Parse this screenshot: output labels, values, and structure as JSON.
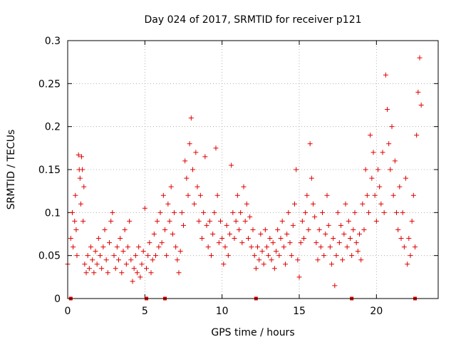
{
  "chart_data": {
    "type": "scatter",
    "title": "Day 024 of 2017, SRMTID for receiver p121",
    "xlabel": "GPS time / hours",
    "ylabel": "SRMTID / TECUs",
    "xlim": [
      0,
      24
    ],
    "ylim": [
      0,
      0.3
    ],
    "x_ticks": [
      0,
      5,
      10,
      15,
      20
    ],
    "x_tick_labels": [
      "0",
      "5",
      "10",
      "15",
      "20"
    ],
    "y_ticks": [
      0,
      0.05,
      0.1,
      0.15,
      0.2,
      0.25,
      0.3
    ],
    "y_tick_labels": [
      "0",
      "0.05",
      "0.1",
      "0.15",
      "0.2",
      "0.25",
      "0.3"
    ],
    "grid": true,
    "marker": "+",
    "color": "#e00000",
    "series": [
      {
        "name": "SRMTID",
        "points": [
          [
            0.0,
            0.04
          ],
          [
            0.2,
            0.07
          ],
          [
            0.3,
            0.1
          ],
          [
            0.35,
            0.06
          ],
          [
            0.45,
            0.09
          ],
          [
            0.5,
            0.12
          ],
          [
            0.55,
            0.08
          ],
          [
            0.6,
            0.05
          ],
          [
            0.7,
            0.167
          ],
          [
            0.75,
            0.15
          ],
          [
            0.8,
            0.14
          ],
          [
            0.85,
            0.11
          ],
          [
            0.9,
            0.165
          ],
          [
            0.95,
            0.15
          ],
          [
            1.0,
            0.09
          ],
          [
            1.05,
            0.13
          ],
          [
            1.1,
            0.04
          ],
          [
            1.2,
            0.03
          ],
          [
            1.3,
            0.05
          ],
          [
            1.4,
            0.035
          ],
          [
            1.5,
            0.06
          ],
          [
            1.6,
            0.045
          ],
          [
            1.7,
            0.03
          ],
          [
            1.8,
            0.055
          ],
          [
            1.9,
            0.04
          ],
          [
            2.0,
            0.07
          ],
          [
            2.1,
            0.05
          ],
          [
            2.2,
            0.035
          ],
          [
            2.3,
            0.06
          ],
          [
            2.4,
            0.08
          ],
          [
            2.5,
            0.045
          ],
          [
            2.6,
            0.03
          ],
          [
            2.7,
            0.065
          ],
          [
            2.8,
            0.09
          ],
          [
            2.9,
            0.1
          ],
          [
            3.0,
            0.05
          ],
          [
            3.1,
            0.035
          ],
          [
            3.2,
            0.06
          ],
          [
            3.3,
            0.045
          ],
          [
            3.4,
            0.07
          ],
          [
            3.5,
            0.03
          ],
          [
            3.6,
            0.055
          ],
          [
            3.7,
            0.08
          ],
          [
            3.8,
            0.04
          ],
          [
            3.9,
            0.06
          ],
          [
            4.0,
            0.09
          ],
          [
            4.1,
            0.045
          ],
          [
            4.2,
            0.02
          ],
          [
            4.3,
            0.035
          ],
          [
            4.4,
            0.05
          ],
          [
            4.5,
            0.03
          ],
          [
            4.6,
            0.06
          ],
          [
            4.7,
            0.025
          ],
          [
            4.8,
            0.04
          ],
          [
            4.9,
            0.055
          ],
          [
            5.0,
            0.105
          ],
          [
            5.1,
            0.035
          ],
          [
            5.2,
            0.05
          ],
          [
            5.3,
            0.065
          ],
          [
            5.4,
            0.03
          ],
          [
            5.5,
            0.045
          ],
          [
            5.6,
            0.075
          ],
          [
            5.7,
            0.05
          ],
          [
            5.8,
            0.09
          ],
          [
            5.9,
            0.06
          ],
          [
            6.0,
            0.1
          ],
          [
            6.1,
            0.065
          ],
          [
            6.2,
            0.12
          ],
          [
            6.3,
            0.08
          ],
          [
            6.4,
            0.05
          ],
          [
            6.5,
            0.11
          ],
          [
            6.6,
            0.09
          ],
          [
            6.7,
            0.13
          ],
          [
            6.8,
            0.075
          ],
          [
            6.9,
            0.1
          ],
          [
            7.0,
            0.06
          ],
          [
            7.1,
            0.045
          ],
          [
            7.2,
            0.03
          ],
          [
            7.3,
            0.055
          ],
          [
            7.4,
            0.1
          ],
          [
            7.5,
            0.085
          ],
          [
            7.6,
            0.16
          ],
          [
            7.7,
            0.14
          ],
          [
            7.8,
            0.12
          ],
          [
            7.9,
            0.18
          ],
          [
            8.0,
            0.21
          ],
          [
            8.1,
            0.15
          ],
          [
            8.2,
            0.11
          ],
          [
            8.3,
            0.17
          ],
          [
            8.4,
            0.13
          ],
          [
            8.5,
            0.09
          ],
          [
            8.6,
            0.12
          ],
          [
            8.7,
            0.07
          ],
          [
            8.8,
            0.1
          ],
          [
            8.9,
            0.165
          ],
          [
            9.0,
            0.085
          ],
          [
            9.1,
            0.06
          ],
          [
            9.2,
            0.09
          ],
          [
            9.3,
            0.05
          ],
          [
            9.4,
            0.075
          ],
          [
            9.5,
            0.1
          ],
          [
            9.6,
            0.175
          ],
          [
            9.7,
            0.12
          ],
          [
            9.8,
            0.065
          ],
          [
            9.9,
            0.09
          ],
          [
            10.0,
            0.07
          ],
          [
            10.1,
            0.04
          ],
          [
            10.2,
            0.06
          ],
          [
            10.3,
            0.085
          ],
          [
            10.4,
            0.05
          ],
          [
            10.5,
            0.075
          ],
          [
            10.6,
            0.155
          ],
          [
            10.7,
            0.1
          ],
          [
            10.8,
            0.07
          ],
          [
            10.9,
            0.09
          ],
          [
            11.0,
            0.12
          ],
          [
            11.1,
            0.08
          ],
          [
            11.2,
            0.1
          ],
          [
            11.3,
            0.065
          ],
          [
            11.4,
            0.13
          ],
          [
            11.5,
            0.09
          ],
          [
            11.6,
            0.11
          ],
          [
            11.7,
            0.07
          ],
          [
            11.8,
            0.095
          ],
          [
            11.9,
            0.06
          ],
          [
            12.0,
            0.08
          ],
          [
            12.1,
            0.05
          ],
          [
            12.2,
            0.035
          ],
          [
            12.3,
            0.06
          ],
          [
            12.4,
            0.045
          ],
          [
            12.5,
            0.075
          ],
          [
            12.6,
            0.055
          ],
          [
            12.7,
            0.04
          ],
          [
            12.8,
            0.08
          ],
          [
            12.9,
            0.06
          ],
          [
            13.0,
            0.05
          ],
          [
            13.1,
            0.07
          ],
          [
            13.2,
            0.045
          ],
          [
            13.3,
            0.065
          ],
          [
            13.4,
            0.035
          ],
          [
            13.5,
            0.055
          ],
          [
            13.6,
            0.08
          ],
          [
            13.7,
            0.05
          ],
          [
            13.8,
            0.07
          ],
          [
            13.9,
            0.09
          ],
          [
            14.0,
            0.06
          ],
          [
            14.1,
            0.04
          ],
          [
            14.2,
            0.075
          ],
          [
            14.3,
            0.1
          ],
          [
            14.4,
            0.065
          ],
          [
            14.5,
            0.05
          ],
          [
            14.6,
            0.085
          ],
          [
            14.7,
            0.11
          ],
          [
            14.8,
            0.15
          ],
          [
            14.9,
            0.045
          ],
          [
            15.0,
            0.025
          ],
          [
            15.1,
            0.065
          ],
          [
            15.2,
            0.09
          ],
          [
            15.3,
            0.07
          ],
          [
            15.4,
            0.1
          ],
          [
            15.5,
            0.12
          ],
          [
            15.6,
            0.08
          ],
          [
            15.7,
            0.18
          ],
          [
            15.8,
            0.14
          ],
          [
            15.9,
            0.11
          ],
          [
            16.0,
            0.095
          ],
          [
            16.1,
            0.065
          ],
          [
            16.2,
            0.045
          ],
          [
            16.3,
            0.08
          ],
          [
            16.4,
            0.06
          ],
          [
            16.5,
            0.1
          ],
          [
            16.6,
            0.05
          ],
          [
            16.7,
            0.075
          ],
          [
            16.8,
            0.12
          ],
          [
            16.9,
            0.085
          ],
          [
            17.0,
            0.06
          ],
          [
            17.1,
            0.04
          ],
          [
            17.2,
            0.07
          ],
          [
            17.3,
            0.015
          ],
          [
            17.4,
            0.05
          ],
          [
            17.5,
            0.1
          ],
          [
            17.6,
            0.065
          ],
          [
            17.7,
            0.085
          ],
          [
            17.8,
            0.045
          ],
          [
            17.9,
            0.075
          ],
          [
            18.0,
            0.11
          ],
          [
            18.1,
            0.06
          ],
          [
            18.2,
            0.09
          ],
          [
            18.3,
            0.07
          ],
          [
            18.4,
            0.05
          ],
          [
            18.5,
            0.08
          ],
          [
            18.6,
            0.1
          ],
          [
            18.7,
            0.065
          ],
          [
            18.8,
            0.055
          ],
          [
            18.9,
            0.075
          ],
          [
            19.0,
            0.045
          ],
          [
            19.1,
            0.11
          ],
          [
            19.2,
            0.08
          ],
          [
            19.3,
            0.15
          ],
          [
            19.4,
            0.12
          ],
          [
            19.5,
            0.1
          ],
          [
            19.6,
            0.19
          ],
          [
            19.7,
            0.14
          ],
          [
            19.8,
            0.17
          ],
          [
            19.9,
            0.12
          ],
          [
            20.0,
            0.09
          ],
          [
            20.1,
            0.15
          ],
          [
            20.2,
            0.13
          ],
          [
            20.3,
            0.11
          ],
          [
            20.4,
            0.17
          ],
          [
            20.5,
            0.1
          ],
          [
            20.6,
            0.26
          ],
          [
            20.7,
            0.22
          ],
          [
            20.8,
            0.18
          ],
          [
            20.9,
            0.15
          ],
          [
            21.0,
            0.2
          ],
          [
            21.1,
            0.12
          ],
          [
            21.2,
            0.16
          ],
          [
            21.3,
            0.1
          ],
          [
            21.4,
            0.08
          ],
          [
            21.5,
            0.13
          ],
          [
            21.6,
            0.07
          ],
          [
            21.7,
            0.1
          ],
          [
            21.8,
            0.06
          ],
          [
            21.9,
            0.14
          ],
          [
            22.0,
            0.04
          ],
          [
            22.1,
            0.07
          ],
          [
            22.2,
            0.05
          ],
          [
            22.3,
            0.09
          ],
          [
            22.4,
            0.12
          ],
          [
            22.5,
            0.06
          ],
          [
            22.6,
            0.19
          ],
          [
            22.7,
            0.24
          ],
          [
            22.8,
            0.28
          ],
          [
            22.9,
            0.225
          ]
        ]
      }
    ],
    "data_gaps": [
      0.2,
      5.1,
      6.3,
      12.2,
      18.4,
      22.5
    ]
  }
}
